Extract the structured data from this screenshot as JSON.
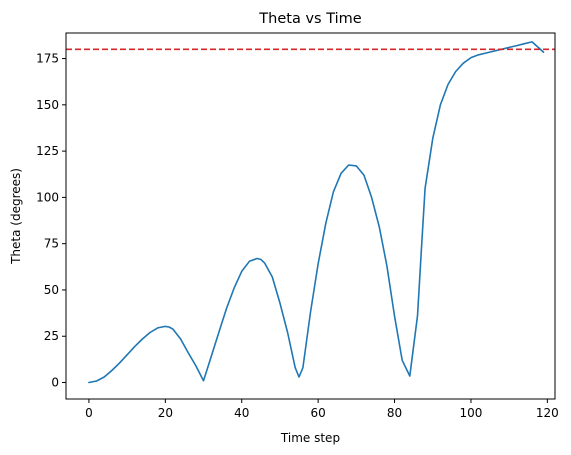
{
  "chart_data": {
    "type": "line",
    "title": "Theta vs Time",
    "xlabel": "Time step",
    "ylabel": "Theta (degrees)",
    "xlim": [
      -6,
      122
    ],
    "ylim": [
      -8.9,
      188.8
    ],
    "xticks": [
      0,
      20,
      40,
      60,
      80,
      100,
      120
    ],
    "yticks": [
      0,
      25,
      50,
      75,
      100,
      125,
      150,
      175
    ],
    "grid": false,
    "series": [
      {
        "color": "#1f77b4",
        "x": [
          0,
          2,
          4,
          6,
          8,
          10,
          12,
          14,
          16,
          18,
          20,
          21,
          22,
          24,
          26,
          28,
          30,
          32,
          34,
          36,
          38,
          40,
          42,
          44,
          45,
          46,
          48,
          50,
          52,
          54,
          55,
          56,
          58,
          60,
          62,
          64,
          66,
          68,
          70,
          72,
          74,
          76,
          78,
          80,
          82,
          84,
          86,
          87,
          88,
          90,
          92,
          94,
          96,
          98,
          100,
          102,
          104,
          106,
          108,
          110,
          112,
          114,
          116,
          119
        ],
        "y": [
          0,
          0.8,
          3,
          6.5,
          10.5,
          15,
          19.5,
          23.5,
          27,
          29.5,
          30.3,
          30,
          28.8,
          23.5,
          16,
          9,
          1,
          14,
          27,
          40,
          51,
          60,
          65.5,
          67,
          66.5,
          64.5,
          57,
          43,
          27,
          8,
          3,
          8,
          38,
          64,
          86,
          103,
          113,
          117.5,
          117,
          112,
          100,
          84,
          63,
          36,
          12,
          3.5,
          36,
          71,
          105,
          132,
          150,
          161,
          168,
          172.5,
          175.5,
          177,
          178,
          179,
          180,
          181,
          182,
          183,
          184,
          178.5
        ]
      }
    ],
    "reference_line": {
      "y": 180,
      "color": "#d62728",
      "style": "dashed"
    }
  }
}
